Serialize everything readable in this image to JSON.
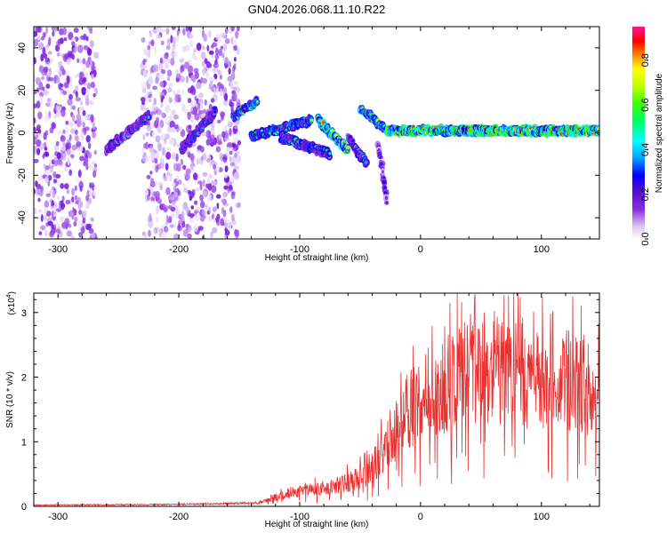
{
  "title": "GN04.2026.068.11.10.R22",
  "chart_data": [
    {
      "type": "heatmap",
      "name": "spectrogram",
      "xlabel": "Height of straight line (km)",
      "ylabel": "Frequency (Hz)",
      "xlim": [
        -320,
        148
      ],
      "ylim": [
        -50,
        50
      ],
      "xticks": [
        -300,
        -200,
        -100,
        0,
        100
      ],
      "yticks": [
        -40,
        -20,
        0,
        20,
        40
      ],
      "colorbar": {
        "label": "Normalized spectral amplitude",
        "range": [
          0.0,
          0.95
        ],
        "ticks": [
          0.0,
          0.2,
          0.4,
          0.6,
          0.8
        ],
        "colormap": [
          "#ffffff",
          "#d9c6f2",
          "#8a2be2",
          "#5a0fd0",
          "#0000ff",
          "#00a0ff",
          "#00ffff",
          "#00ff60",
          "#40ff00",
          "#c0ff00",
          "#ffff00",
          "#ff8000",
          "#ff0000",
          "#ff0060",
          "#ff1493"
        ]
      },
      "regions": [
        {
          "name": "noise-left",
          "x": [
            -320,
            -268
          ],
          "f": [
            -50,
            50
          ],
          "amp": 0.12
        },
        {
          "name": "noise-mid",
          "x": [
            -230,
            -195
          ],
          "f": [
            -50,
            50
          ],
          "amp": 0.1
        },
        {
          "name": "noise-right",
          "x": [
            -195,
            -150
          ],
          "f": [
            -50,
            50
          ],
          "amp": 0.12
        }
      ],
      "features": [
        {
          "x": [
            -260,
            -225
          ],
          "f": [
            -8,
            8
          ],
          "amp": 0.35
        },
        {
          "x": [
            -198,
            -170
          ],
          "f": [
            -8,
            10
          ],
          "amp": 0.35
        },
        {
          "x": [
            -155,
            -135
          ],
          "f": [
            8,
            15
          ],
          "amp": 0.55
        },
        {
          "x": [
            -140,
            -90
          ],
          "f": [
            -2,
            6
          ],
          "amp": 0.5
        },
        {
          "x": [
            -115,
            -75
          ],
          "f": [
            -2,
            -10
          ],
          "amp": 0.45
        },
        {
          "x": [
            -85,
            -60
          ],
          "f": [
            6,
            -8
          ],
          "amp": 0.75
        },
        {
          "x": [
            -60,
            -45
          ],
          "f": [
            -2,
            -14
          ],
          "amp": 0.4
        },
        {
          "x": [
            -50,
            -30
          ],
          "f": [
            12,
            2
          ],
          "amp": 0.55
        },
        {
          "x": [
            -35,
            -28
          ],
          "f": [
            -5,
            -32
          ],
          "amp": 0.25
        },
        {
          "x": [
            -28,
            148
          ],
          "f": [
            1,
            1
          ],
          "amp": 0.85
        }
      ]
    },
    {
      "type": "line",
      "name": "snr",
      "xlabel": "Height of straight line (km)",
      "ylabel": "SNR (10 * v/v)",
      "yscale_label": "(x10",
      "yscale_exponent": "4",
      "xlim": [
        -320,
        148
      ],
      "ylim": [
        0,
        3.3
      ],
      "xticks": [
        -300,
        -200,
        -100,
        0,
        100
      ],
      "yticks": [
        0,
        1,
        2,
        3
      ],
      "color": "#e83030",
      "envelope_x": [
        -320,
        -200,
        -135,
        -120,
        -100,
        -80,
        -60,
        -45,
        -30,
        -20,
        -10,
        0,
        20,
        40,
        60,
        80,
        100,
        120,
        148
      ],
      "envelope_y": [
        0.02,
        0.03,
        0.05,
        0.15,
        0.25,
        0.3,
        0.4,
        0.55,
        0.9,
        1.3,
        1.6,
        1.75,
        2.0,
        2.3,
        2.35,
        2.2,
        2.1,
        2.0,
        1.95
      ]
    }
  ]
}
